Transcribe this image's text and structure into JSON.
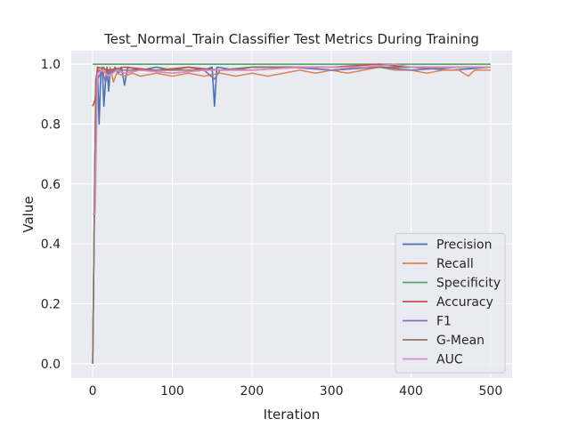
{
  "chart_data": {
    "type": "line",
    "title": "Test_Normal_Train Classifier Test Metrics During Training",
    "xlabel": "Iteration",
    "ylabel": "Value",
    "xlim": [
      -27,
      527
    ],
    "ylim": [
      -0.048,
      1.045
    ],
    "xticks": [
      0,
      100,
      200,
      300,
      400,
      500
    ],
    "yticks": [
      0.0,
      0.2,
      0.4,
      0.6,
      0.8,
      1.0
    ],
    "xtick_labels": [
      "0",
      "100",
      "200",
      "300",
      "400",
      "500"
    ],
    "ytick_labels": [
      "0.0",
      "0.2",
      "0.4",
      "0.6",
      "0.8",
      "1.0"
    ],
    "grid": true,
    "legend_position": "lower-right",
    "series": [
      {
        "name": "Precision",
        "color": "#4c72b0",
        "points": [
          [
            0,
            0.0
          ],
          [
            2,
            0.5
          ],
          [
            4,
            0.95
          ],
          [
            6,
            0.98
          ],
          [
            8,
            0.8
          ],
          [
            10,
            0.96
          ],
          [
            12,
            0.99
          ],
          [
            14,
            0.86
          ],
          [
            16,
            0.94
          ],
          [
            18,
            0.99
          ],
          [
            20,
            0.91
          ],
          [
            22,
            0.98
          ],
          [
            25,
            0.97
          ],
          [
            28,
            0.99
          ],
          [
            32,
            0.97
          ],
          [
            36,
            0.99
          ],
          [
            40,
            0.93
          ],
          [
            44,
            0.99
          ],
          [
            60,
            0.98
          ],
          [
            80,
            0.99
          ],
          [
            100,
            0.98
          ],
          [
            120,
            0.99
          ],
          [
            140,
            0.98
          ],
          [
            150,
            0.99
          ],
          [
            153,
            0.86
          ],
          [
            156,
            0.99
          ],
          [
            180,
            0.98
          ],
          [
            200,
            0.99
          ],
          [
            250,
            0.99
          ],
          [
            300,
            0.98
          ],
          [
            350,
            0.99
          ],
          [
            400,
            0.99
          ],
          [
            450,
            0.98
          ],
          [
            500,
            0.99
          ]
        ]
      },
      {
        "name": "Recall",
        "color": "#dd8452",
        "points": [
          [
            0,
            0.86
          ],
          [
            3,
            0.88
          ],
          [
            6,
            0.99
          ],
          [
            10,
            0.97
          ],
          [
            14,
            0.99
          ],
          [
            18,
            0.96
          ],
          [
            22,
            0.99
          ],
          [
            26,
            0.94
          ],
          [
            30,
            0.97
          ],
          [
            40,
            0.96
          ],
          [
            50,
            0.97
          ],
          [
            60,
            0.96
          ],
          [
            80,
            0.97
          ],
          [
            100,
            0.96
          ],
          [
            120,
            0.97
          ],
          [
            140,
            0.96
          ],
          [
            160,
            0.97
          ],
          [
            180,
            0.96
          ],
          [
            200,
            0.97
          ],
          [
            220,
            0.96
          ],
          [
            240,
            0.97
          ],
          [
            260,
            0.98
          ],
          [
            280,
            0.97
          ],
          [
            300,
            0.98
          ],
          [
            320,
            0.97
          ],
          [
            340,
            0.98
          ],
          [
            360,
            0.99
          ],
          [
            380,
            0.98
          ],
          [
            400,
            0.98
          ],
          [
            420,
            0.97
          ],
          [
            440,
            0.98
          ],
          [
            460,
            0.98
          ],
          [
            472,
            0.96
          ],
          [
            480,
            0.98
          ],
          [
            500,
            0.98
          ]
        ]
      },
      {
        "name": "Specificity",
        "color": "#55a868",
        "points": [
          [
            0,
            1.0
          ],
          [
            100,
            1.0
          ],
          [
            200,
            1.0
          ],
          [
            300,
            1.0
          ],
          [
            400,
            1.0
          ],
          [
            500,
            1.0
          ]
        ]
      },
      {
        "name": "Accuracy",
        "color": "#c44e52",
        "points": [
          [
            0,
            0.86
          ],
          [
            3,
            0.88
          ],
          [
            6,
            0.99
          ],
          [
            20,
            0.98
          ],
          [
            40,
            0.99
          ],
          [
            80,
            0.98
          ],
          [
            120,
            0.99
          ],
          [
            160,
            0.98
          ],
          [
            200,
            0.99
          ],
          [
            260,
            0.99
          ],
          [
            300,
            0.99
          ],
          [
            360,
            1.0
          ],
          [
            400,
            0.99
          ],
          [
            460,
            0.99
          ],
          [
            500,
            0.99
          ]
        ]
      },
      {
        "name": "F1",
        "color": "#8172b3",
        "points": [
          [
            0,
            0.0
          ],
          [
            2,
            0.5
          ],
          [
            4,
            0.94
          ],
          [
            8,
            0.96
          ],
          [
            12,
            0.98
          ],
          [
            16,
            0.94
          ],
          [
            20,
            0.97
          ],
          [
            28,
            0.98
          ],
          [
            40,
            0.97
          ],
          [
            60,
            0.98
          ],
          [
            100,
            0.97
          ],
          [
            140,
            0.98
          ],
          [
            153,
            0.95
          ],
          [
            160,
            0.98
          ],
          [
            200,
            0.98
          ],
          [
            260,
            0.99
          ],
          [
            300,
            0.98
          ],
          [
            360,
            0.99
          ],
          [
            400,
            0.98
          ],
          [
            460,
            0.99
          ],
          [
            500,
            0.99
          ]
        ]
      },
      {
        "name": "G-Mean",
        "color": "#937860",
        "points": [
          [
            0,
            0.0
          ],
          [
            2,
            0.5
          ],
          [
            4,
            0.95
          ],
          [
            8,
            0.98
          ],
          [
            16,
            0.97
          ],
          [
            24,
            0.98
          ],
          [
            40,
            0.98
          ],
          [
            80,
            0.98
          ],
          [
            120,
            0.98
          ],
          [
            160,
            0.98
          ],
          [
            200,
            0.99
          ],
          [
            260,
            0.99
          ],
          [
            300,
            0.99
          ],
          [
            360,
            0.99
          ],
          [
            400,
            0.99
          ],
          [
            460,
            0.99
          ],
          [
            500,
            0.99
          ]
        ]
      },
      {
        "name": "AUC",
        "color": "#da8bc3",
        "points": [
          [
            0,
            0.5
          ],
          [
            3,
            0.5
          ],
          [
            6,
            0.97
          ],
          [
            12,
            0.98
          ],
          [
            20,
            0.96
          ],
          [
            30,
            0.98
          ],
          [
            40,
            0.97
          ],
          [
            60,
            0.98
          ],
          [
            100,
            0.97
          ],
          [
            140,
            0.98
          ],
          [
            180,
            0.98
          ],
          [
            200,
            0.98
          ],
          [
            260,
            0.99
          ],
          [
            300,
            0.99
          ],
          [
            340,
            0.99
          ],
          [
            380,
            1.0
          ],
          [
            400,
            0.99
          ],
          [
            440,
            0.99
          ],
          [
            500,
            0.99
          ]
        ]
      }
    ]
  }
}
